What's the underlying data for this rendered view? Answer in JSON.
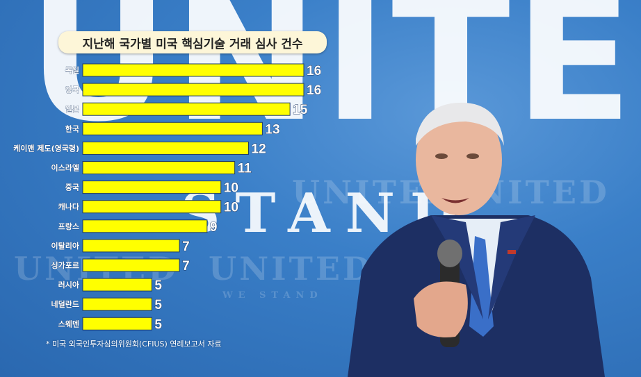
{
  "background": {
    "big_word": "UNITED",
    "slogan": "STAND",
    "repeated_word": "UNITED",
    "repeated_sub": "WE STAND"
  },
  "chart_data": {
    "type": "bar",
    "orientation": "horizontal",
    "title": "지난해 국가별 미국 핵심기술 거래 심사 건수",
    "categories": [
      "독일",
      "영국",
      "일본",
      "한국",
      "케이맨 제도(영국령)",
      "이스라엘",
      "중국",
      "캐나다",
      "프랑스",
      "이탈리아",
      "싱가포르",
      "러시아",
      "네덜란드",
      "스웨덴"
    ],
    "values": [
      16,
      16,
      15,
      13,
      12,
      11,
      10,
      10,
      9,
      7,
      7,
      5,
      5,
      5
    ],
    "bar_color": "#ffff00",
    "bar_border_color": "#1e3a66",
    "label_color": "#ffffff",
    "xlim": [
      0,
      16
    ],
    "grid": false,
    "legend": "none"
  },
  "footnote": "* 미국 외국인투자심의위원회(CFIUS) 연례보고서 자료"
}
